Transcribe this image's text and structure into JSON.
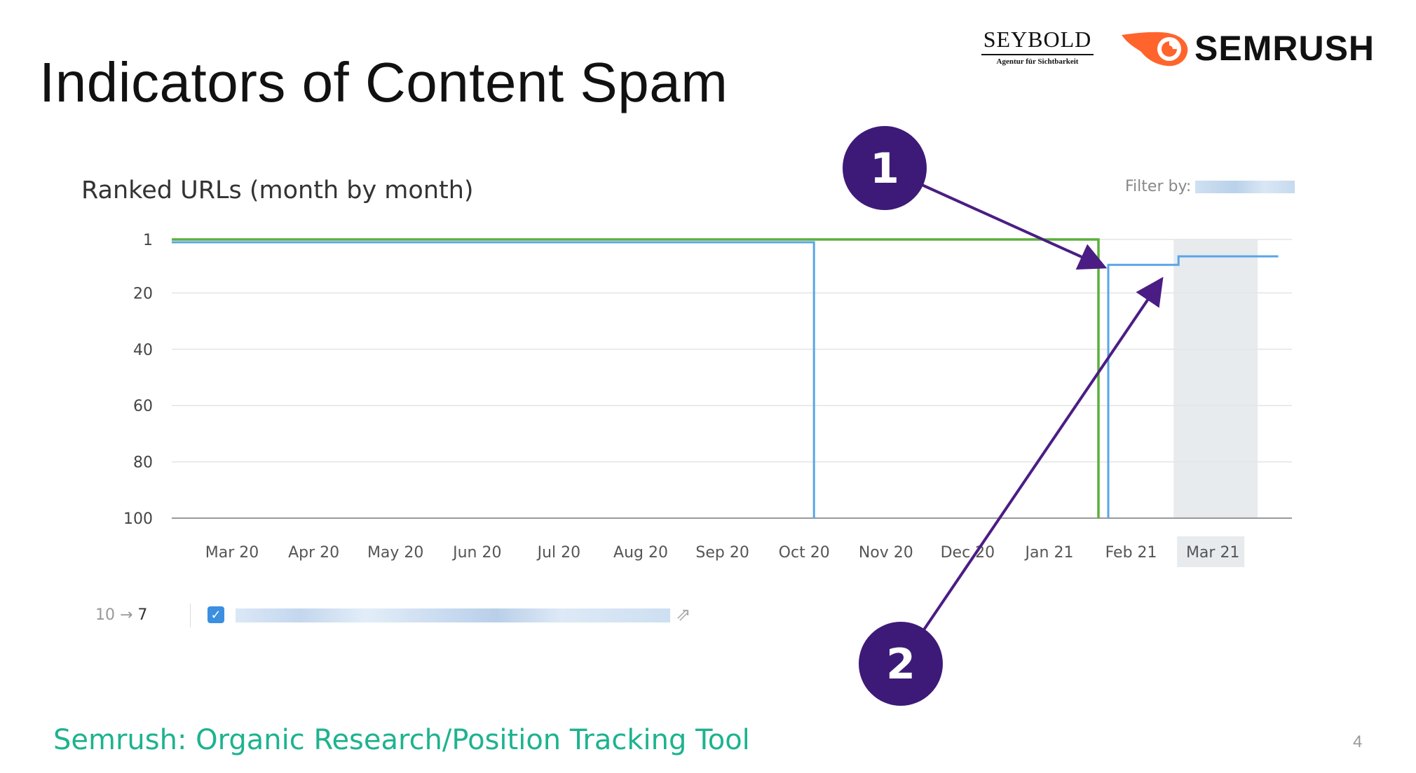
{
  "slide": {
    "title": "Indicators of Content Spam",
    "source": "Semrush: Organic Research/Position Tracking Tool",
    "page_number": "4"
  },
  "logos": {
    "seybold_name": "SEYBOLD",
    "seybold_tagline": "Agentur für Sichtbarkeit",
    "semrush_name": "SEMRUSH"
  },
  "colors": {
    "accent_arrow": "#4b1d84",
    "badge": "#3d1a78",
    "green_series": "#5bb03a",
    "blue_series": "#5aa5e6",
    "source_text": "#1db38f",
    "highlight_band": "#e8ebee"
  },
  "chart_data": {
    "type": "line",
    "title": "Ranked URLs (month by month)",
    "filter_label": "Filter by:",
    "x_labels": [
      "Mar 20",
      "Apr 20",
      "May 20",
      "Jun 20",
      "Jul 20",
      "Aug 20",
      "Sep 20",
      "Oct 20",
      "Nov 20",
      "Dec 20",
      "Jan 21",
      "Feb 21",
      "Mar 21"
    ],
    "highlighted_label": "Mar 21",
    "y_ticks": [
      1,
      20,
      40,
      60,
      80,
      100
    ],
    "ylim": [
      1,
      100
    ],
    "y_inverted": true,
    "grid": true,
    "series": [
      {
        "color": "green",
        "points": [
          [
            0,
            1
          ],
          [
            10.6,
            1
          ],
          [
            10.6,
            100
          ]
        ]
      },
      {
        "color": "blue",
        "points": [
          [
            0,
            2
          ],
          [
            7.12,
            2
          ],
          [
            7.12,
            100
          ],
          [
            null,
            null
          ],
          [
            10.72,
            100
          ],
          [
            10.72,
            10
          ],
          [
            11.58,
            10
          ],
          [
            11.58,
            7
          ],
          [
            12.8,
            7
          ]
        ]
      }
    ],
    "legend": {
      "rank_from": "10",
      "rank_to": "7"
    },
    "annotations": [
      {
        "label": "1"
      },
      {
        "label": "2"
      }
    ]
  }
}
